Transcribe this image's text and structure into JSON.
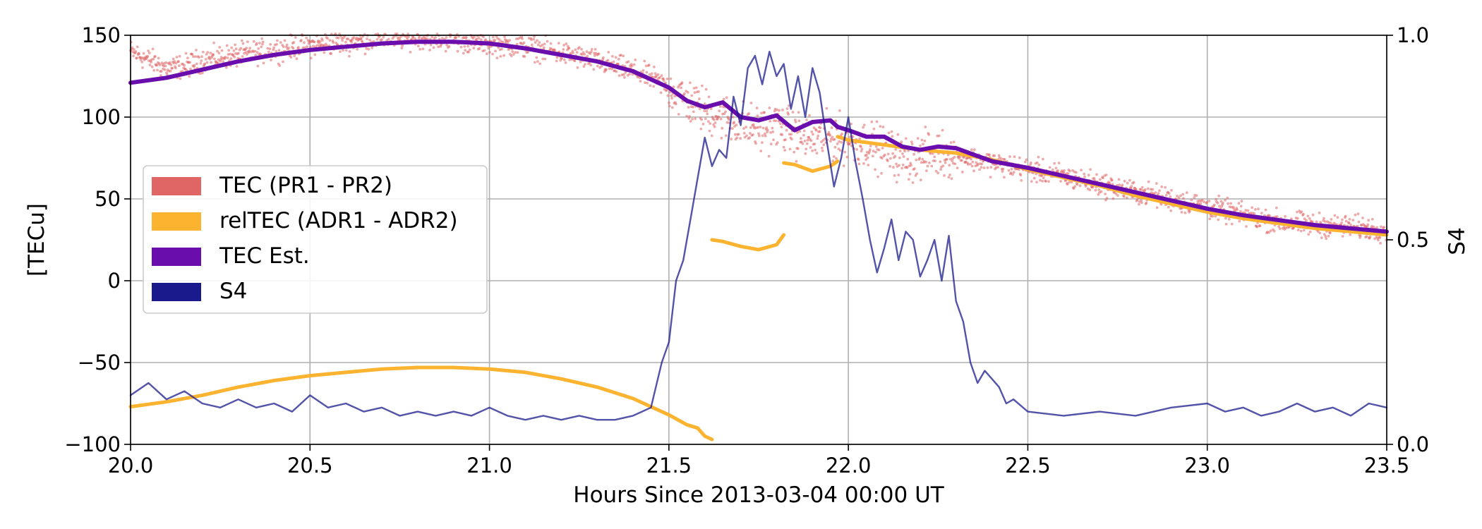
{
  "chart_data": {
    "type": "line",
    "title": "",
    "xlabel": "Hours Since 2013-03-04 00:00 UT",
    "ylabel": "[TECu]",
    "ylabel_right": "S4",
    "xlim": [
      20.0,
      23.5
    ],
    "ylim": [
      -100,
      150
    ],
    "ylim_right": [
      0.0,
      1.0
    ],
    "x_ticks": [
      20.0,
      20.5,
      21.0,
      21.5,
      22.0,
      22.5,
      23.0,
      23.5
    ],
    "x_tick_labels": [
      "20.0",
      "20.5",
      "21.0",
      "21.5",
      "22.0",
      "22.5",
      "23.0",
      "23.5"
    ],
    "y_ticks": [
      -100,
      -50,
      0,
      50,
      100,
      150
    ],
    "y_tick_labels": [
      "−100",
      "−50",
      "0",
      "50",
      "100",
      "150"
    ],
    "y_right_ticks": [
      0.0,
      0.5,
      1.0
    ],
    "y_right_tick_labels": [
      "0.0",
      "0.5",
      "1.0"
    ],
    "grid": true,
    "legend_position": "center-left",
    "series": [
      {
        "name": "TEC (PR1 - PR2)",
        "color": "#e06666",
        "style": "scatter",
        "axis": "left",
        "points": [
          [
            20.0,
            140
          ],
          [
            20.05,
            135
          ],
          [
            20.1,
            130
          ],
          [
            20.15,
            131
          ],
          [
            20.2,
            135
          ],
          [
            20.3,
            138
          ],
          [
            20.4,
            141
          ],
          [
            20.5,
            144
          ],
          [
            20.6,
            146
          ],
          [
            20.7,
            148
          ],
          [
            20.8,
            149
          ],
          [
            20.9,
            147
          ],
          [
            21.0,
            145
          ],
          [
            21.1,
            143
          ],
          [
            21.2,
            139
          ],
          [
            21.3,
            134
          ],
          [
            21.4,
            128
          ],
          [
            21.45,
            124
          ],
          [
            21.5,
            118
          ],
          [
            21.55,
            110
          ],
          [
            21.6,
            104
          ],
          [
            21.65,
            100
          ],
          [
            21.7,
            96
          ],
          [
            21.75,
            92
          ],
          [
            21.8,
            95
          ],
          [
            21.85,
            90
          ],
          [
            21.9,
            86
          ],
          [
            21.95,
            88
          ],
          [
            22.0,
            86
          ],
          [
            22.05,
            84
          ],
          [
            22.1,
            80
          ],
          [
            22.15,
            74
          ],
          [
            22.2,
            76
          ],
          [
            22.25,
            78
          ],
          [
            22.3,
            76
          ],
          [
            22.35,
            74
          ],
          [
            22.4,
            72
          ],
          [
            22.5,
            68
          ],
          [
            22.6,
            64
          ],
          [
            22.7,
            59
          ],
          [
            22.8,
            54
          ],
          [
            22.9,
            50
          ],
          [
            23.0,
            45
          ],
          [
            23.1,
            40
          ],
          [
            23.2,
            36
          ],
          [
            23.3,
            34
          ],
          [
            23.4,
            33
          ],
          [
            23.5,
            31
          ]
        ]
      },
      {
        "name": "relTEC (ADR1 - ADR2)",
        "color": "#fbb330",
        "style": "line",
        "axis": "left",
        "segments": [
          [
            [
              20.0,
              -77
            ],
            [
              20.1,
              -74
            ],
            [
              20.2,
              -70
            ],
            [
              20.3,
              -65
            ],
            [
              20.4,
              -61
            ],
            [
              20.5,
              -58
            ],
            [
              20.6,
              -56
            ],
            [
              20.7,
              -54
            ],
            [
              20.8,
              -53
            ],
            [
              20.9,
              -53
            ],
            [
              21.0,
              -54
            ],
            [
              21.1,
              -56
            ],
            [
              21.2,
              -60
            ],
            [
              21.3,
              -65
            ],
            [
              21.4,
              -72
            ],
            [
              21.45,
              -77
            ],
            [
              21.5,
              -82
            ],
            [
              21.55,
              -88
            ],
            [
              21.58,
              -90
            ],
            [
              21.6,
              -95
            ],
            [
              21.62,
              -97
            ]
          ],
          [
            [
              21.62,
              25
            ],
            [
              21.65,
              24
            ],
            [
              21.7,
              21
            ],
            [
              21.75,
              19
            ],
            [
              21.8,
              22
            ],
            [
              21.82,
              28
            ]
          ],
          [
            [
              21.82,
              72
            ],
            [
              21.85,
              71
            ],
            [
              21.9,
              67
            ],
            [
              21.95,
              70
            ],
            [
              21.97,
              73
            ]
          ],
          [
            [
              21.97,
              88
            ],
            [
              22.0,
              86
            ],
            [
              22.1,
              83
            ],
            [
              22.2,
              80
            ],
            [
              22.3,
              78
            ],
            [
              22.4,
              74
            ],
            [
              22.5,
              68
            ],
            [
              22.6,
              63
            ],
            [
              22.7,
              58
            ],
            [
              22.8,
              52
            ],
            [
              22.9,
              47
            ],
            [
              23.0,
              42
            ],
            [
              23.1,
              38
            ],
            [
              23.2,
              35
            ],
            [
              23.3,
              32
            ],
            [
              23.4,
              30
            ],
            [
              23.5,
              28
            ]
          ]
        ]
      },
      {
        "name": "TEC Est.",
        "color": "#6a0dad",
        "style": "line",
        "axis": "left",
        "points": [
          [
            20.0,
            121
          ],
          [
            20.1,
            124
          ],
          [
            20.2,
            129
          ],
          [
            20.3,
            134
          ],
          [
            20.4,
            138
          ],
          [
            20.5,
            141
          ],
          [
            20.6,
            143
          ],
          [
            20.7,
            145
          ],
          [
            20.8,
            146
          ],
          [
            20.9,
            146
          ],
          [
            21.0,
            145
          ],
          [
            21.1,
            142
          ],
          [
            21.2,
            138
          ],
          [
            21.3,
            134
          ],
          [
            21.4,
            128
          ],
          [
            21.5,
            118
          ],
          [
            21.55,
            110
          ],
          [
            21.6,
            106
          ],
          [
            21.65,
            109
          ],
          [
            21.7,
            100
          ],
          [
            21.75,
            98
          ],
          [
            21.8,
            101
          ],
          [
            21.85,
            92
          ],
          [
            21.9,
            97
          ],
          [
            21.95,
            98
          ],
          [
            21.97,
            94
          ],
          [
            22.0,
            92
          ],
          [
            22.05,
            88
          ],
          [
            22.1,
            88
          ],
          [
            22.15,
            82
          ],
          [
            22.2,
            80
          ],
          [
            22.25,
            82
          ],
          [
            22.3,
            81
          ],
          [
            22.35,
            77
          ],
          [
            22.4,
            73
          ],
          [
            22.5,
            69
          ],
          [
            22.6,
            64
          ],
          [
            22.7,
            59
          ],
          [
            22.8,
            54
          ],
          [
            22.9,
            49
          ],
          [
            23.0,
            44
          ],
          [
            23.1,
            40
          ],
          [
            23.2,
            37
          ],
          [
            23.3,
            34
          ],
          [
            23.4,
            32
          ],
          [
            23.5,
            30
          ]
        ]
      },
      {
        "name": "S4",
        "color": "#1a1a8c",
        "style": "line",
        "axis": "right",
        "points": [
          [
            20.0,
            0.12
          ],
          [
            20.05,
            0.15
          ],
          [
            20.1,
            0.11
          ],
          [
            20.15,
            0.13
          ],
          [
            20.2,
            0.1
          ],
          [
            20.25,
            0.09
          ],
          [
            20.3,
            0.11
          ],
          [
            20.35,
            0.09
          ],
          [
            20.4,
            0.1
          ],
          [
            20.45,
            0.08
          ],
          [
            20.5,
            0.12
          ],
          [
            20.55,
            0.09
          ],
          [
            20.6,
            0.1
          ],
          [
            20.65,
            0.08
          ],
          [
            20.7,
            0.09
          ],
          [
            20.75,
            0.07
          ],
          [
            20.8,
            0.08
          ],
          [
            20.85,
            0.07
          ],
          [
            20.9,
            0.08
          ],
          [
            20.95,
            0.07
          ],
          [
            21.0,
            0.09
          ],
          [
            21.05,
            0.07
          ],
          [
            21.1,
            0.06
          ],
          [
            21.15,
            0.07
          ],
          [
            21.2,
            0.06
          ],
          [
            21.25,
            0.07
          ],
          [
            21.3,
            0.06
          ],
          [
            21.35,
            0.06
          ],
          [
            21.4,
            0.07
          ],
          [
            21.45,
            0.09
          ],
          [
            21.48,
            0.2
          ],
          [
            21.5,
            0.25
          ],
          [
            21.52,
            0.4
          ],
          [
            21.54,
            0.45
          ],
          [
            21.56,
            0.55
          ],
          [
            21.58,
            0.65
          ],
          [
            21.6,
            0.75
          ],
          [
            21.62,
            0.68
          ],
          [
            21.64,
            0.72
          ],
          [
            21.66,
            0.7
          ],
          [
            21.68,
            0.85
          ],
          [
            21.7,
            0.78
          ],
          [
            21.72,
            0.92
          ],
          [
            21.74,
            0.95
          ],
          [
            21.76,
            0.88
          ],
          [
            21.78,
            0.96
          ],
          [
            21.8,
            0.9
          ],
          [
            21.82,
            0.93
          ],
          [
            21.84,
            0.82
          ],
          [
            21.86,
            0.9
          ],
          [
            21.88,
            0.8
          ],
          [
            21.9,
            0.92
          ],
          [
            21.92,
            0.86
          ],
          [
            21.94,
            0.74
          ],
          [
            21.96,
            0.63
          ],
          [
            21.98,
            0.7
          ],
          [
            22.0,
            0.8
          ],
          [
            22.02,
            0.69
          ],
          [
            22.04,
            0.6
          ],
          [
            22.06,
            0.5
          ],
          [
            22.08,
            0.42
          ],
          [
            22.1,
            0.48
          ],
          [
            22.12,
            0.55
          ],
          [
            22.14,
            0.45
          ],
          [
            22.16,
            0.52
          ],
          [
            22.18,
            0.5
          ],
          [
            22.2,
            0.41
          ],
          [
            22.22,
            0.45
          ],
          [
            22.24,
            0.5
          ],
          [
            22.26,
            0.4
          ],
          [
            22.28,
            0.51
          ],
          [
            22.3,
            0.35
          ],
          [
            22.32,
            0.3
          ],
          [
            22.34,
            0.2
          ],
          [
            22.36,
            0.15
          ],
          [
            22.38,
            0.18
          ],
          [
            22.4,
            0.16
          ],
          [
            22.42,
            0.14
          ],
          [
            22.44,
            0.1
          ],
          [
            22.46,
            0.11
          ],
          [
            22.5,
            0.08
          ],
          [
            22.6,
            0.07
          ],
          [
            22.7,
            0.08
          ],
          [
            22.8,
            0.07
          ],
          [
            22.9,
            0.09
          ],
          [
            23.0,
            0.1
          ],
          [
            23.05,
            0.08
          ],
          [
            23.1,
            0.09
          ],
          [
            23.15,
            0.07
          ],
          [
            23.2,
            0.08
          ],
          [
            23.25,
            0.1
          ],
          [
            23.3,
            0.08
          ],
          [
            23.35,
            0.09
          ],
          [
            23.4,
            0.07
          ],
          [
            23.45,
            0.1
          ],
          [
            23.5,
            0.09
          ]
        ]
      }
    ]
  }
}
